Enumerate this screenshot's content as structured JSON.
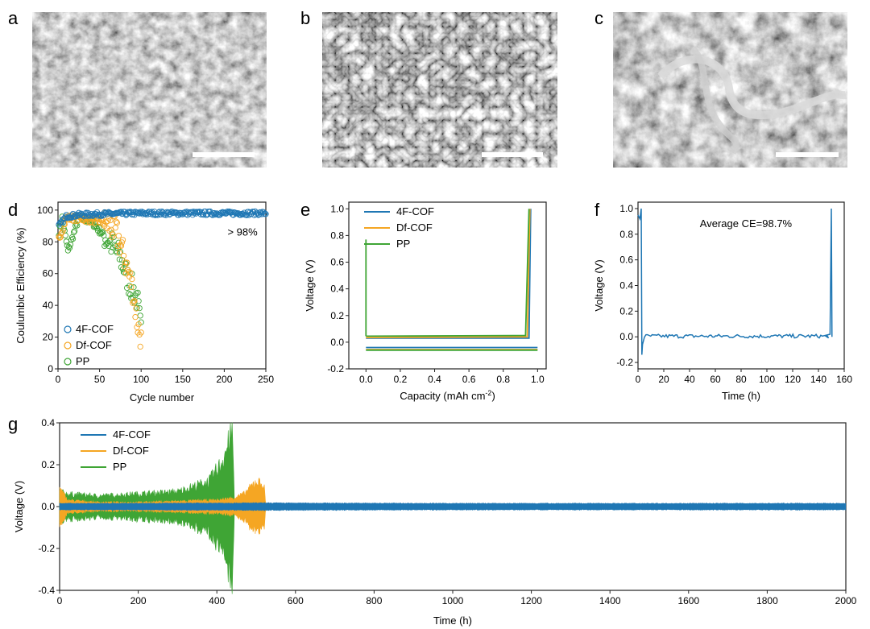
{
  "panels": {
    "a": "a",
    "b": "b",
    "c": "c",
    "d": "d",
    "e": "e",
    "f": "f",
    "g": "g"
  },
  "colors": {
    "4F-COF": "#1f77b4",
    "Df-COF": "#f5a623",
    "PP": "#3fa535"
  },
  "sem_images": [
    {
      "panel": "a",
      "texture": "dense-wrinkled"
    },
    {
      "panel": "b",
      "texture": "porous-granular"
    },
    {
      "panel": "c",
      "texture": "dendritic-ribbons"
    }
  ],
  "chart_data": [
    {
      "panel": "d",
      "type": "scatter",
      "xlabel": "Cycle number",
      "ylabel": "Coulumbic Efficiency (%)",
      "xlim": [
        0,
        250
      ],
      "ylim": [
        0,
        105
      ],
      "xticks": [
        "0",
        "50",
        "100",
        "150",
        "200",
        "250"
      ],
      "yticks": [
        "0",
        "20",
        "40",
        "60",
        "80",
        "100"
      ],
      "annotation": "> 98%",
      "legend": [
        "4F-COF",
        "Df-COF",
        "PP"
      ],
      "legend_position": "bottom-left",
      "series": [
        {
          "name": "4F-COF",
          "x": [
            1,
            10,
            25,
            50,
            100,
            150,
            200,
            250
          ],
          "y": [
            90,
            96,
            97,
            97.5,
            98,
            98,
            98,
            98
          ]
        },
        {
          "name": "Df-COF",
          "x": [
            1,
            10,
            25,
            50,
            60,
            70,
            80,
            90,
            95,
            100
          ],
          "y": [
            82,
            95,
            95,
            93,
            91,
            86,
            70,
            50,
            30,
            18
          ]
        },
        {
          "name": "PP",
          "x": [
            1,
            5,
            12,
            25,
            40,
            55,
            65,
            75,
            85,
            95,
            100
          ],
          "y": [
            86,
            95,
            74,
            95,
            93,
            84,
            78,
            70,
            55,
            45,
            22
          ]
        }
      ]
    },
    {
      "panel": "e",
      "type": "line",
      "xlabel": "Capacity (mAh cm",
      "xlabel_sup": "-2",
      "xlabel_end": ")",
      "ylabel": "Voltage (V)",
      "xlim": [
        -0.1,
        1.05
      ],
      "ylim": [
        -0.2,
        1.05
      ],
      "xticks": [
        "0.0",
        "0.2",
        "0.4",
        "0.6",
        "0.8",
        "1.0"
      ],
      "yticks": [
        "-0.2",
        "0.0",
        "0.2",
        "0.4",
        "0.6",
        "0.8",
        "1.0"
      ],
      "legend": [
        "4F-COF",
        "Df-COF",
        "PP"
      ],
      "legend_position": "top-left",
      "series": [
        {
          "name": "4F-COF",
          "discharge": [
            [
              0,
              -0.04
            ],
            [
              1.0,
              -0.04
            ]
          ],
          "charge": [
            [
              0,
              0.03
            ],
            [
              0.95,
              0.03
            ],
            [
              0.96,
              1.0
            ]
          ]
        },
        {
          "name": "Df-COF",
          "discharge": [
            [
              0,
              -0.055
            ],
            [
              1.0,
              -0.055
            ]
          ],
          "charge": [
            [
              0,
              0.035
            ],
            [
              0.94,
              0.04
            ],
            [
              0.955,
              1.0
            ]
          ]
        },
        {
          "name": "PP",
          "discharge": [
            [
              0,
              -0.06
            ],
            [
              1.0,
              -0.06
            ]
          ],
          "charge": [
            [
              0,
              0.045
            ],
            [
              0.93,
              0.05
            ],
            [
              0.95,
              1.0
            ]
          ],
          "initial_spike": 0.77
        }
      ]
    },
    {
      "panel": "f",
      "type": "line",
      "xlabel": "Time (h)",
      "ylabel": "Voltage (V)",
      "xlim": [
        0,
        160
      ],
      "ylim": [
        -0.25,
        1.05
      ],
      "xticks": [
        "0",
        "20",
        "40",
        "60",
        "80",
        "100",
        "120",
        "140",
        "160"
      ],
      "yticks": [
        "-0.2",
        "0.0",
        "0.2",
        "0.4",
        "0.6",
        "0.8",
        "1.0"
      ],
      "annotation": "Average CE=98.7%",
      "series": [
        {
          "name": "4F-COF",
          "x": [
            0,
            1.5,
            2.5,
            3,
            3.5,
            5,
            10,
            145,
            149,
            150,
            150.5
          ],
          "y": [
            0.95,
            0.92,
            1.0,
            -0.14,
            -0.06,
            0.0,
            0.01,
            0.01,
            0.02,
            1.0,
            0.0
          ]
        }
      ]
    },
    {
      "panel": "g",
      "type": "area",
      "xlabel": "Time (h)",
      "ylabel": "Voltage (V)",
      "xlim": [
        0,
        2000
      ],
      "ylim": [
        -0.4,
        0.4
      ],
      "xticks": [
        "0",
        "200",
        "400",
        "600",
        "800",
        "1000",
        "1200",
        "1400",
        "1600",
        "1800",
        "2000"
      ],
      "yticks": [
        "-0.4",
        "-0.2",
        "0.0",
        "0.2",
        "0.4"
      ],
      "legend": [
        "4F-COF",
        "Df-COF",
        "PP"
      ],
      "legend_position": "top-left",
      "series": [
        {
          "name": "PP",
          "x": [
            0,
            20,
            100,
            200,
            300,
            380,
            410,
            430,
            440,
            445
          ],
          "y": [
            0.07,
            0.06,
            0.05,
            0.06,
            0.07,
            0.12,
            0.2,
            0.3,
            0.35,
            0.0
          ]
        },
        {
          "name": "Df-COF",
          "x": [
            0,
            20,
            100,
            200,
            300,
            400,
            440,
            470,
            500,
            520,
            525
          ],
          "y": [
            0.09,
            0.03,
            0.02,
            0.02,
            0.025,
            0.03,
            0.04,
            0.06,
            0.12,
            0.1,
            0.0
          ]
        },
        {
          "name": "4F-COF",
          "x": [
            0,
            20,
            100,
            500,
            1000,
            1500,
            2000
          ],
          "y": [
            0.015,
            0.015,
            0.015,
            0.017,
            0.015,
            0.015,
            0.015
          ]
        }
      ]
    }
  ]
}
